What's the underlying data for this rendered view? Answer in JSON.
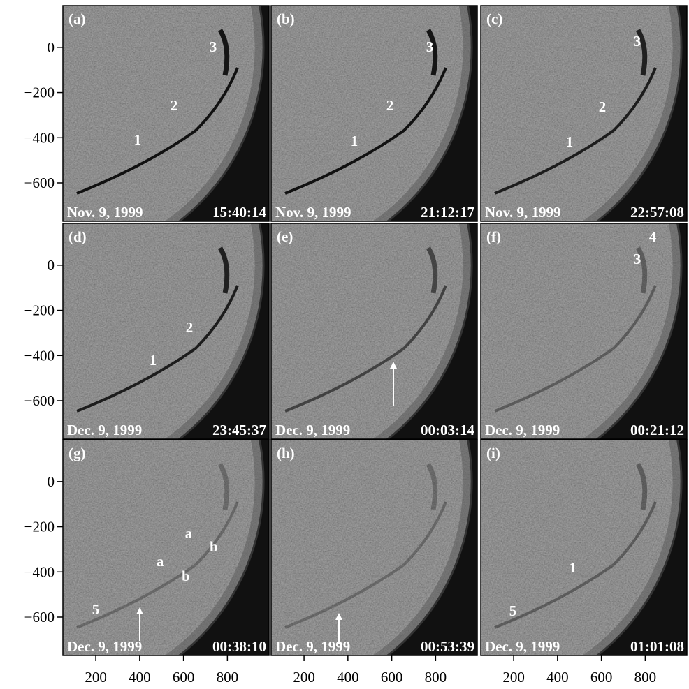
{
  "figure": {
    "x_axis": {
      "xlim": [
        50,
        990
      ],
      "ticks": [
        200,
        400,
        600,
        800
      ]
    },
    "y_axis": {
      "ylim": [
        -770,
        185
      ],
      "ticks": [
        0,
        {
          "value": -200,
          "label": "−200"
        },
        {
          "value": -400,
          "label": "−400"
        },
        {
          "value": -600,
          "label": "−600"
        }
      ]
    },
    "panels": [
      {
        "label": "(a)",
        "date": "Nov. 9, 1999",
        "time": "15:40:14",
        "annotations": [
          "1",
          "2",
          "3"
        ]
      },
      {
        "label": "(b)",
        "date": "Nov. 9, 1999",
        "time": "21:12:17",
        "annotations": [
          "1",
          "2",
          "3"
        ]
      },
      {
        "label": "(c)",
        "date": "Nov. 9, 1999",
        "time": "22:57:08",
        "annotations": [
          "1",
          "2",
          "3"
        ]
      },
      {
        "label": "(d)",
        "date": "Dec. 9, 1999",
        "time": "23:45:37",
        "annotations": [
          "1",
          "2"
        ]
      },
      {
        "label": "(e)",
        "date": "Dec. 9, 1999",
        "time": "00:03:14",
        "annotations": []
      },
      {
        "label": "(f)",
        "date": "Dec. 9, 1999",
        "time": "00:21:12",
        "annotations": [
          "4",
          "3"
        ]
      },
      {
        "label": "(g)",
        "date": "Dec. 9, 1999",
        "time": "00:38:10",
        "annotations": [
          "a",
          "b",
          "a",
          "b",
          "5"
        ]
      },
      {
        "label": "(h)",
        "date": "Dec. 9, 1999",
        "time": "00:53:39",
        "annotations": []
      },
      {
        "label": "(i)",
        "date": "Dec. 9, 1999",
        "time": "01:01:08",
        "annotations": [
          "1",
          "5"
        ]
      }
    ]
  }
}
